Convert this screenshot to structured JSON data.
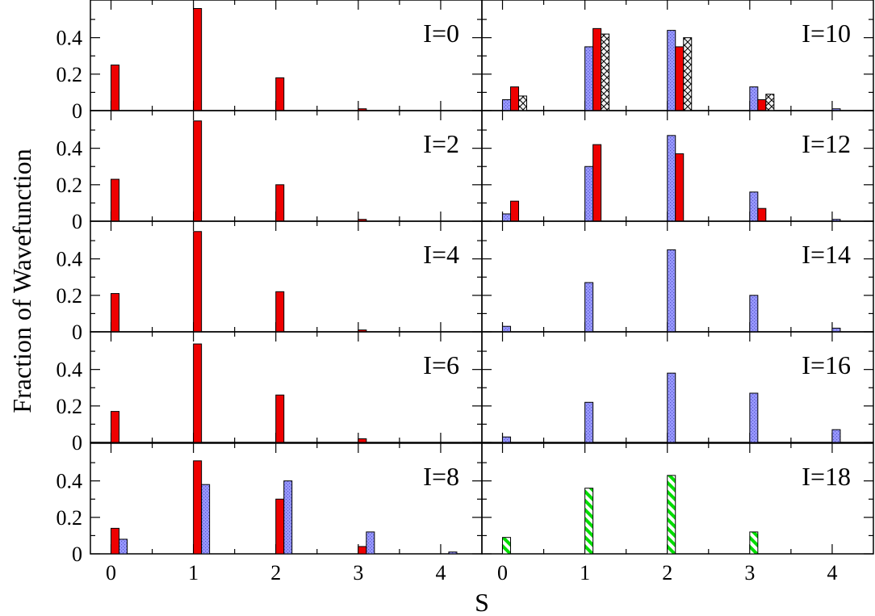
{
  "chart_data": {
    "type": "bar",
    "ylabel": "Fraction of Wavefunction",
    "xlabel": "S",
    "x_ticks": [
      "0",
      "1",
      "2",
      "3",
      "4"
    ],
    "y_ticks": [
      "0",
      "0.2",
      "0.4"
    ],
    "xlim": [
      -0.25,
      4.5
    ],
    "ylim": [
      0,
      0.58
    ],
    "layout": "5 rows x 2 columns, shared axes",
    "series_styles": [
      {
        "fill": "#ee0000",
        "pattern": "solid"
      },
      {
        "fill": "#9999ff",
        "pattern": "dotted-grid"
      },
      {
        "fill": "#d9d9d9",
        "pattern": "crosshatch"
      },
      {
        "fill": "#00dd00",
        "pattern": "diagonal-stripes"
      }
    ],
    "panels": [
      {
        "label": "I=0",
        "row": 0,
        "col": 0,
        "bars": [
          {
            "series": 0,
            "values": [
              0.25,
              0.56,
              0.18,
              0.01,
              0
            ]
          }
        ]
      },
      {
        "label": "I=2",
        "row": 1,
        "col": 0,
        "bars": [
          {
            "series": 0,
            "values": [
              0.23,
              0.55,
              0.2,
              0.01,
              0
            ]
          }
        ]
      },
      {
        "label": "I=4",
        "row": 2,
        "col": 0,
        "bars": [
          {
            "series": 0,
            "values": [
              0.21,
              0.55,
              0.22,
              0.01,
              0
            ]
          }
        ]
      },
      {
        "label": "I=6",
        "row": 3,
        "col": 0,
        "bars": [
          {
            "series": 0,
            "values": [
              0.17,
              0.54,
              0.26,
              0.02,
              0
            ]
          }
        ]
      },
      {
        "label": "I=8",
        "row": 4,
        "col": 0,
        "bars": [
          {
            "series": 0,
            "values": [
              0.14,
              0.51,
              0.3,
              0.04,
              0
            ]
          },
          {
            "series": 1,
            "values": [
              0.08,
              0.38,
              0.4,
              0.12,
              0.01
            ]
          }
        ]
      },
      {
        "label": "I=10",
        "row": 0,
        "col": 1,
        "bars": [
          {
            "series": 1,
            "values": [
              0.06,
              0.35,
              0.44,
              0.13,
              0.01
            ]
          },
          {
            "series": 0,
            "values": [
              0.13,
              0.45,
              0.35,
              0.06,
              0
            ]
          },
          {
            "series": 2,
            "values": [
              0.08,
              0.42,
              0.4,
              0.09,
              0
            ]
          }
        ]
      },
      {
        "label": "I=12",
        "row": 1,
        "col": 1,
        "bars": [
          {
            "series": 1,
            "values": [
              0.04,
              0.3,
              0.47,
              0.16,
              0.01
            ]
          },
          {
            "series": 0,
            "values": [
              0.11,
              0.42,
              0.37,
              0.07,
              0
            ]
          }
        ]
      },
      {
        "label": "I=14",
        "row": 2,
        "col": 1,
        "bars": [
          {
            "series": 1,
            "values": [
              0.03,
              0.27,
              0.45,
              0.2,
              0.02
            ]
          }
        ]
      },
      {
        "label": "I=16",
        "row": 3,
        "col": 1,
        "bars": [
          {
            "series": 1,
            "values": [
              0.03,
              0.22,
              0.38,
              0.27,
              0.07
            ]
          }
        ]
      },
      {
        "label": "I=18",
        "row": 4,
        "col": 1,
        "bars": [
          {
            "series": 3,
            "values": [
              0.09,
              0.36,
              0.43,
              0.12,
              0
            ]
          }
        ]
      }
    ]
  }
}
